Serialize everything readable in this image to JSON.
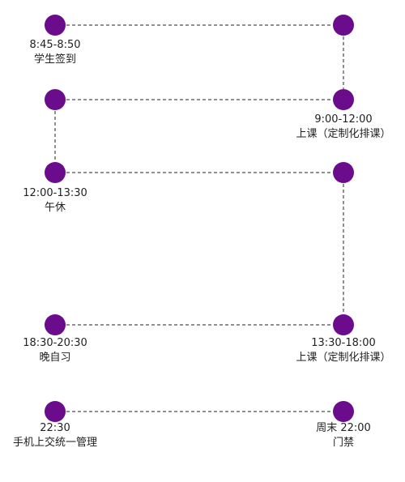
{
  "colors": {
    "node": "#6a0c8c",
    "connector": "#222222"
  },
  "schedule": [
    {
      "time": "8:45-8:50",
      "activity": "学生签到"
    },
    {
      "time": "9:00-12:00",
      "activity": "上课（定制化排课）"
    },
    {
      "time": "12:00-13:30",
      "activity": "午休"
    },
    {
      "time": "13:30-18:00",
      "activity": "上课（定制化排课）"
    },
    {
      "time": "18:30-20:30",
      "activity": "晚自习"
    },
    {
      "time": "22:30",
      "activity": "手机上交统一管理"
    },
    {
      "time": "周末 22:00",
      "activity": "门禁"
    }
  ]
}
